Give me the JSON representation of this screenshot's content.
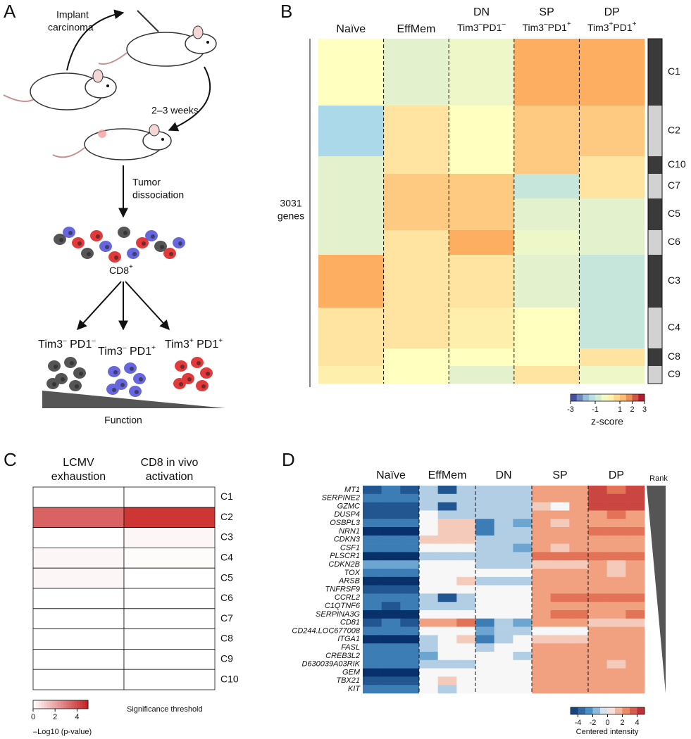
{
  "panel_a": {
    "label": "A",
    "implant_label": [
      "Implant",
      "carcinoma"
    ],
    "weeks_label": "2–3 weeks",
    "dissociation_label": [
      "Tumor",
      "dissociation"
    ],
    "cd8_label": {
      "text": "CD8",
      "sup": "+"
    },
    "groups": [
      {
        "a": "Tim3",
        "a_sup": "–",
        "b": " PD1",
        "b_sup": "–",
        "color": "#555555"
      },
      {
        "a": "Tim3",
        "a_sup": "–",
        "b": " PD1",
        "b_sup": "+",
        "color": "#6666dd"
      },
      {
        "a": "Tim3",
        "a_sup": "+",
        "b": " PD1",
        "b_sup": "+",
        "color": "#e23a3a"
      }
    ],
    "function_label": "Function"
  },
  "panel_b": {
    "label": "B",
    "groups": [
      {
        "name": "Naïve",
        "sub": null
      },
      {
        "name": "EffMem",
        "sub": null
      },
      {
        "name": "DN",
        "sub": {
          "a": "Tim3",
          "a_sup": "–",
          "b": "PD1",
          "b_sup": "–"
        }
      },
      {
        "name": "SP",
        "sub": {
          "a": "Tim3",
          "a_sup": "–",
          "b": "PD1",
          "b_sup": "+"
        }
      },
      {
        "name": "DP",
        "sub": {
          "a": "Tim3",
          "a_sup": "+",
          "b": "PD1",
          "b_sup": "+"
        }
      }
    ],
    "genes_label": [
      "3031",
      "genes"
    ],
    "clusters": [
      {
        "name": "C1",
        "color": "#3a3a3a",
        "values": [
          0,
          -0.5,
          -0.3,
          1.5,
          1.5
        ]
      },
      {
        "name": "C2",
        "color": "#d2d2d2",
        "values": [
          -1.5,
          0.5,
          0,
          1,
          1
        ]
      },
      {
        "name": "C10",
        "color": "#3a3a3a",
        "values": [
          -0.5,
          0.5,
          0,
          1,
          0.5
        ]
      },
      {
        "name": "C7",
        "color": "#d2d2d2",
        "values": [
          -0.5,
          1,
          1,
          -1,
          0.5
        ]
      },
      {
        "name": "C5",
        "color": "#3a3a3a",
        "values": [
          -0.5,
          1,
          1,
          -0.5,
          -0.5
        ]
      },
      {
        "name": "C6",
        "color": "#d2d2d2",
        "values": [
          -0.5,
          0.5,
          1.5,
          -0.3,
          -0.5
        ]
      },
      {
        "name": "C3",
        "color": "#3a3a3a",
        "values": [
          1.5,
          0.5,
          0.5,
          -0.5,
          -1
        ]
      },
      {
        "name": "C4",
        "color": "#d2d2d2",
        "values": [
          0.5,
          0.5,
          0.3,
          0,
          -1
        ]
      },
      {
        "name": "C8",
        "color": "#3a3a3a",
        "values": [
          0.5,
          0,
          0,
          0,
          0.5
        ]
      },
      {
        "name": "C9",
        "color": "#d2d2d2",
        "values": [
          0.3,
          0,
          -0.5,
          0.5,
          -0.3
        ]
      }
    ],
    "colorbar": {
      "lim": [
        -3,
        3
      ],
      "ticks": [
        -3,
        -1,
        1,
        2,
        3
      ],
      "label": "z-score",
      "colors": [
        "#313695",
        "#abd9e9",
        "#ffffbf",
        "#fdae61",
        "#a50026"
      ]
    }
  },
  "panel_c": {
    "label": "C",
    "columns": [
      [
        "LCMV",
        "exhaustion"
      ],
      [
        "CD8 in vivo",
        "activation"
      ]
    ],
    "rows": [
      "C1",
      "C2",
      "C3",
      "C4",
      "C5",
      "C6",
      "C7",
      "C8",
      "C9",
      "C10"
    ],
    "values": [
      [
        0,
        0
      ],
      [
        3.5,
        4.5
      ],
      [
        0,
        0.2
      ],
      [
        0.2,
        0.1
      ],
      [
        0.2,
        0
      ],
      [
        0,
        0
      ],
      [
        0,
        0
      ],
      [
        0,
        0
      ],
      [
        0,
        0
      ],
      [
        0,
        0
      ]
    ],
    "colorbar": {
      "lim": [
        0,
        5
      ],
      "ticks": [
        0,
        2,
        4
      ],
      "label": "–Log10 (p-value)",
      "colors": [
        "#ffffff",
        "#c81e1e"
      ]
    },
    "threshold_label": "Significance threshold"
  },
  "panel_d": {
    "label": "D",
    "groups": [
      "Naïve",
      "EffMem",
      "DN",
      "SP",
      "DP"
    ],
    "rank_label": "Rank",
    "genes": [
      "MT1",
      "SERPINE2",
      "GZMC",
      "DUSP4",
      "OSBPL3",
      "NRN1",
      "CDKN3",
      "CSF1",
      "PLSCR1",
      "CDKN2B",
      "TOX",
      "ARSB",
      "TNFRSF9",
      "CCRL2",
      "C1QTNF6",
      "SERPINA3G",
      "CD81",
      "CD244.LOC677008",
      "ITGA1",
      "FASL",
      "CREB3L2",
      "D630039A03RIK",
      "GEM",
      "TBX21",
      "KIT"
    ],
    "values": [
      [
        -4,
        -3,
        -4,
        -1,
        -4,
        -1,
        -1,
        -1,
        -1,
        2,
        2,
        2,
        4,
        3,
        4
      ],
      [
        -3,
        -3,
        -3,
        -1,
        -1,
        -1,
        -1,
        -1,
        -1,
        2,
        2,
        2,
        4,
        4,
        4
      ],
      [
        -4,
        -4,
        -4,
        -1,
        -4,
        -1,
        -1,
        -1,
        -1,
        1,
        0,
        2,
        4,
        4,
        4
      ],
      [
        -4,
        -4,
        -4,
        0,
        -1,
        -1,
        -1,
        -1,
        -1,
        2,
        2,
        2,
        2,
        3,
        2
      ],
      [
        -3,
        -3,
        -3,
        0,
        1,
        1,
        -3,
        -1,
        -2,
        2,
        1,
        2,
        2,
        2,
        2
      ],
      [
        -5,
        -5,
        -5,
        0,
        1,
        1,
        -3,
        -1,
        -1,
        2,
        2,
        2,
        3,
        3,
        3
      ],
      [
        -3,
        -3,
        -3,
        1,
        1,
        1,
        -1,
        -1,
        -1,
        2,
        2,
        2,
        2,
        2,
        2
      ],
      [
        -3,
        -3,
        -3,
        0,
        0,
        0,
        -1,
        -1,
        -2,
        2,
        1,
        2,
        2,
        2,
        2
      ],
      [
        -5,
        -5,
        -5,
        -1,
        -1,
        -1,
        -1,
        -1,
        -1,
        3,
        3,
        3,
        3,
        3,
        3
      ],
      [
        -2,
        -2,
        -2,
        0,
        0,
        0,
        -1,
        -1,
        -1,
        1,
        1,
        1,
        2,
        1,
        2
      ],
      [
        -3,
        -3,
        -3,
        0,
        0,
        0,
        0,
        0,
        0,
        2,
        2,
        2,
        2,
        1,
        2
      ],
      [
        -5,
        -5,
        -5,
        0,
        0,
        1,
        -1,
        -1,
        -1,
        2,
        2,
        2,
        2,
        2,
        2
      ],
      [
        -4,
        -4,
        -4,
        0,
        0,
        0,
        0,
        0,
        0,
        2,
        2,
        2,
        2,
        2,
        2
      ],
      [
        -3,
        -3,
        -3,
        -1,
        -4,
        -1,
        0,
        0,
        0,
        2,
        3,
        3,
        3,
        3,
        3
      ],
      [
        -3,
        -4,
        -3,
        -1,
        -1,
        -1,
        0,
        0,
        0,
        2,
        2,
        2,
        2,
        2,
        2
      ],
      [
        -5,
        -5,
        -5,
        0,
        0,
        0,
        0,
        0,
        0,
        2,
        3,
        3,
        2,
        2,
        3
      ],
      [
        -4,
        -3,
        -4,
        2,
        2,
        3,
        -3,
        -1,
        -2,
        2,
        2,
        2,
        1,
        1,
        1
      ],
      [
        -3,
        -3,
        -3,
        0,
        0,
        0,
        -2,
        -1,
        -1,
        0,
        0,
        0,
        2,
        2,
        2
      ],
      [
        -5,
        -5,
        -5,
        -1,
        0,
        1,
        -3,
        -1,
        0,
        1,
        1,
        1,
        2,
        2,
        2
      ],
      [
        -3,
        -3,
        -3,
        -1,
        0,
        0,
        -1,
        0,
        0,
        2,
        2,
        2,
        2,
        2,
        2
      ],
      [
        -3,
        -3,
        -3,
        -2,
        0,
        0,
        0,
        0,
        -1,
        2,
        2,
        2,
        2,
        2,
        2
      ],
      [
        -3,
        -3,
        -3,
        -1,
        -1,
        -1,
        0,
        0,
        0,
        2,
        2,
        2,
        2,
        1,
        2
      ],
      [
        -5,
        -5,
        -5,
        0,
        0,
        0,
        0,
        0,
        0,
        2,
        2,
        2,
        2,
        2,
        2
      ],
      [
        -4,
        -4,
        -4,
        0,
        1,
        0,
        0,
        0,
        0,
        2,
        2,
        2,
        2,
        2,
        2
      ],
      [
        -3,
        -3,
        -3,
        0,
        -1,
        0,
        0,
        0,
        0,
        2,
        2,
        2,
        2,
        2,
        2
      ]
    ],
    "colorbar": {
      "lim": [
        -5,
        5
      ],
      "ticks": [
        -4,
        -2,
        0,
        2,
        4
      ],
      "label": "Centered intensity",
      "colors": [
        "#08306b",
        "#4a90c8",
        "#f7f7f7",
        "#ef8a62",
        "#b2182b"
      ]
    }
  }
}
